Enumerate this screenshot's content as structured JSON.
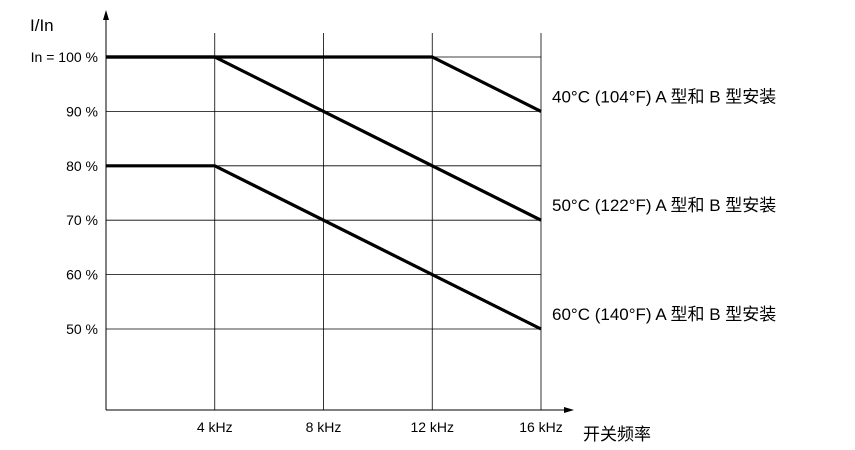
{
  "chart_data": {
    "type": "line",
    "ylabel": "I/In",
    "xlabel": "开关频率",
    "x_ticks": [
      {
        "value": 4,
        "label": "4 kHz"
      },
      {
        "value": 8,
        "label": "8 kHz"
      },
      {
        "value": 12,
        "label": "12 kHz"
      },
      {
        "value": 16,
        "label": "16 kHz"
      }
    ],
    "y_ticks": [
      {
        "value": 100,
        "label": "In = 100 %"
      },
      {
        "value": 90,
        "label": "90 %"
      },
      {
        "value": 80,
        "label": "80 %"
      },
      {
        "value": 70,
        "label": "70 %"
      },
      {
        "value": 60,
        "label": "60 %"
      },
      {
        "value": 50,
        "label": "50 %"
      }
    ],
    "xlim": [
      0,
      16
    ],
    "ylim": [
      35,
      107
    ],
    "grid": true,
    "series": [
      {
        "name": "40°C (104°F) A 型和 B 型安装",
        "x": [
          0,
          12,
          16
        ],
        "y": [
          100,
          100,
          90
        ]
      },
      {
        "name": "50°C (122°F) A 型和 B 型安装",
        "x": [
          0,
          4,
          16
        ],
        "y": [
          100,
          100,
          70
        ]
      },
      {
        "name": "60°C (140°F) A 型和 B 型安装",
        "x": [
          0,
          4,
          16
        ],
        "y": [
          80,
          80,
          50
        ]
      }
    ],
    "line_color": "#000000",
    "grid_color": "#000000"
  }
}
